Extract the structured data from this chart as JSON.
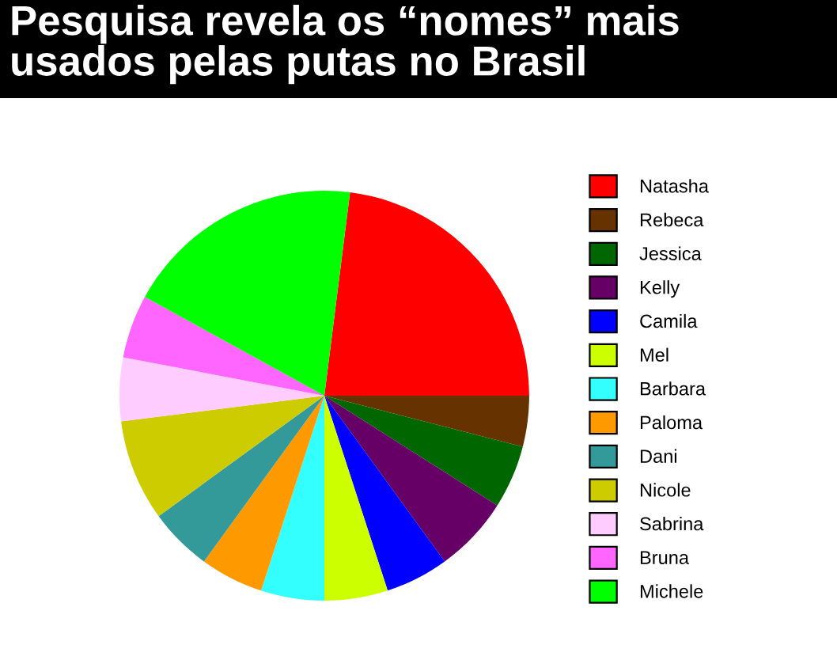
{
  "chart_data": {
    "type": "pie",
    "title": "Pesquisa revela os “nomes” mais usados pelas putas no Brasil",
    "categories": [
      "Natasha",
      "Rebeca",
      "Jessica",
      "Kelly",
      "Camila",
      "Mel",
      "Barbara",
      "Paloma",
      "Dani",
      "Nicole",
      "Sabrina",
      "Bruna",
      "Michele"
    ],
    "values": [
      23,
      4,
      5,
      6,
      5,
      5,
      5,
      5,
      5,
      8,
      5,
      5,
      19
    ],
    "colors": [
      "#ff0000",
      "#663300",
      "#006600",
      "#660066",
      "#0000ff",
      "#ccff00",
      "#33ffff",
      "#ff9900",
      "#339999",
      "#cccc00",
      "#ffccff",
      "#ff66ff",
      "#00ff00"
    ],
    "legend": "right"
  }
}
